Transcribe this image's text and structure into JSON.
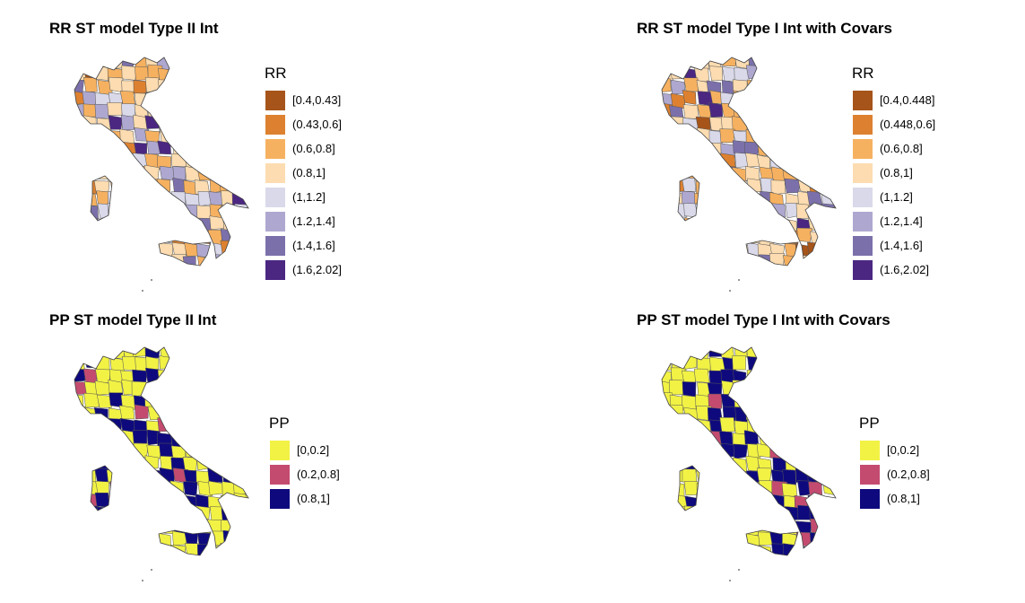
{
  "panels": [
    {
      "title": "RR ST model Type II Int",
      "legend": {
        "title": "RR",
        "items": [
          {
            "label": "[0.4,0.43]",
            "color": "#a6541a"
          },
          {
            "label": "(0.43,0.6]",
            "color": "#dd8130"
          },
          {
            "label": "(0.6,0.8]",
            "color": "#f6b160"
          },
          {
            "label": "(0.8,1]",
            "color": "#fcdcb0"
          },
          {
            "label": "(1,1.2]",
            "color": "#d9d9ea"
          },
          {
            "label": "(1.2,1.4]",
            "color": "#aea8d0"
          },
          {
            "label": "(1.4,1.6]",
            "color": "#7c70ab"
          },
          {
            "label": "(1.6,2.02]",
            "color": "#4b2782"
          }
        ]
      }
    },
    {
      "title": "RR ST model Type I Int with Covars",
      "legend": {
        "title": "RR",
        "items": [
          {
            "label": "[0.4,0.448]",
            "color": "#a6541a"
          },
          {
            "label": "(0.448,0.6]",
            "color": "#dd8130"
          },
          {
            "label": "(0.6,0.8]",
            "color": "#f6b160"
          },
          {
            "label": "(0.8,1]",
            "color": "#fcdcb0"
          },
          {
            "label": "(1,1.2]",
            "color": "#d9d9ea"
          },
          {
            "label": "(1.2,1.4]",
            "color": "#aea8d0"
          },
          {
            "label": "(1.4,1.6]",
            "color": "#7c70ab"
          },
          {
            "label": "(1.6,2.02]",
            "color": "#4b2782"
          }
        ]
      }
    },
    {
      "title": "PP ST model Type II Int",
      "legend": {
        "title": "PP",
        "items": [
          {
            "label": "[0,0.2]",
            "color": "#f2f245"
          },
          {
            "label": "(0.2,0.8]",
            "color": "#c44b70"
          },
          {
            "label": "(0.8,1]",
            "color": "#0e0a7d"
          }
        ]
      }
    },
    {
      "title": "PP ST model Type I Int with Covars",
      "legend": {
        "title": "PP",
        "items": [
          {
            "label": "[0,0.2]",
            "color": "#f2f245"
          },
          {
            "label": "(0.2,0.8]",
            "color": "#c44b70"
          },
          {
            "label": "(0.8,1]",
            "color": "#0e0a7d"
          }
        ]
      }
    }
  ]
}
